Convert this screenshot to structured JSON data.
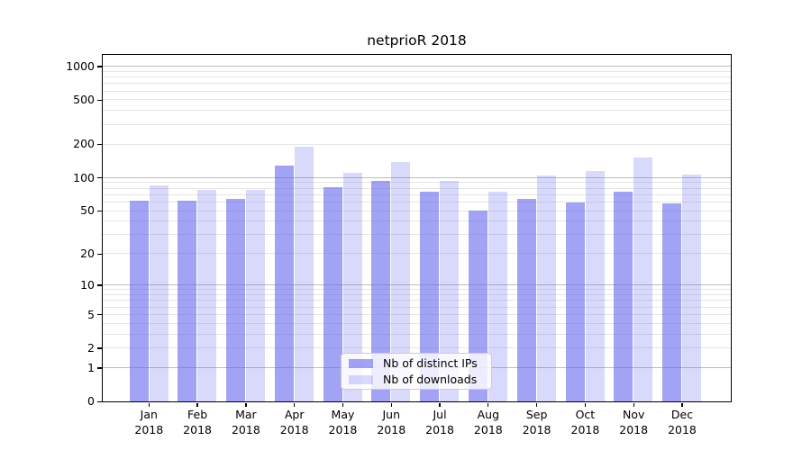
{
  "title": "netprioR 2018",
  "chart_data": {
    "type": "bar",
    "title": "netprioR 2018",
    "scale": "symlog",
    "categories": [
      "Jan 2018",
      "Feb 2018",
      "Mar 2018",
      "Apr 2018",
      "May 2018",
      "Jun 2018",
      "Jul 2018",
      "Aug 2018",
      "Sep 2018",
      "Oct 2018",
      "Nov 2018",
      "Dec 2018"
    ],
    "series": [
      {
        "name": "Nb of distinct IPs",
        "color": "rgba(102,102,238,0.6)",
        "values": [
          62,
          62,
          64,
          129,
          82,
          93,
          74,
          50,
          64,
          59,
          74,
          58
        ]
      },
      {
        "name": "Nb of downloads",
        "color": "rgba(102,102,238,0.25)",
        "values": [
          85,
          77,
          77,
          190,
          110,
          139,
          93,
          75,
          104,
          114,
          152,
          107
        ]
      }
    ],
    "y_ticks": [
      0,
      1,
      2,
      5,
      10,
      20,
      50,
      100,
      200,
      500,
      1000
    ],
    "major_gridline_values": [
      1,
      10,
      100,
      1000
    ],
    "minor_gridline_values": [
      2,
      3,
      4,
      5,
      6,
      7,
      8,
      9,
      20,
      30,
      40,
      50,
      60,
      70,
      80,
      90,
      200,
      300,
      400,
      500,
      600,
      700,
      800,
      900
    ],
    "ylim": [
      0,
      1265
    ],
    "xlabel": "",
    "ylabel": "",
    "grid": true,
    "legend_position": "lower center"
  },
  "colors": {
    "bar_distinct_ips": "rgba(102,102,238,0.6)",
    "bar_downloads": "rgba(102,102,238,0.25)",
    "major_gridline": "#bdbdbd",
    "minor_gridline": "#e6e6e6",
    "axis": "#000000",
    "background": "#ffffff"
  }
}
